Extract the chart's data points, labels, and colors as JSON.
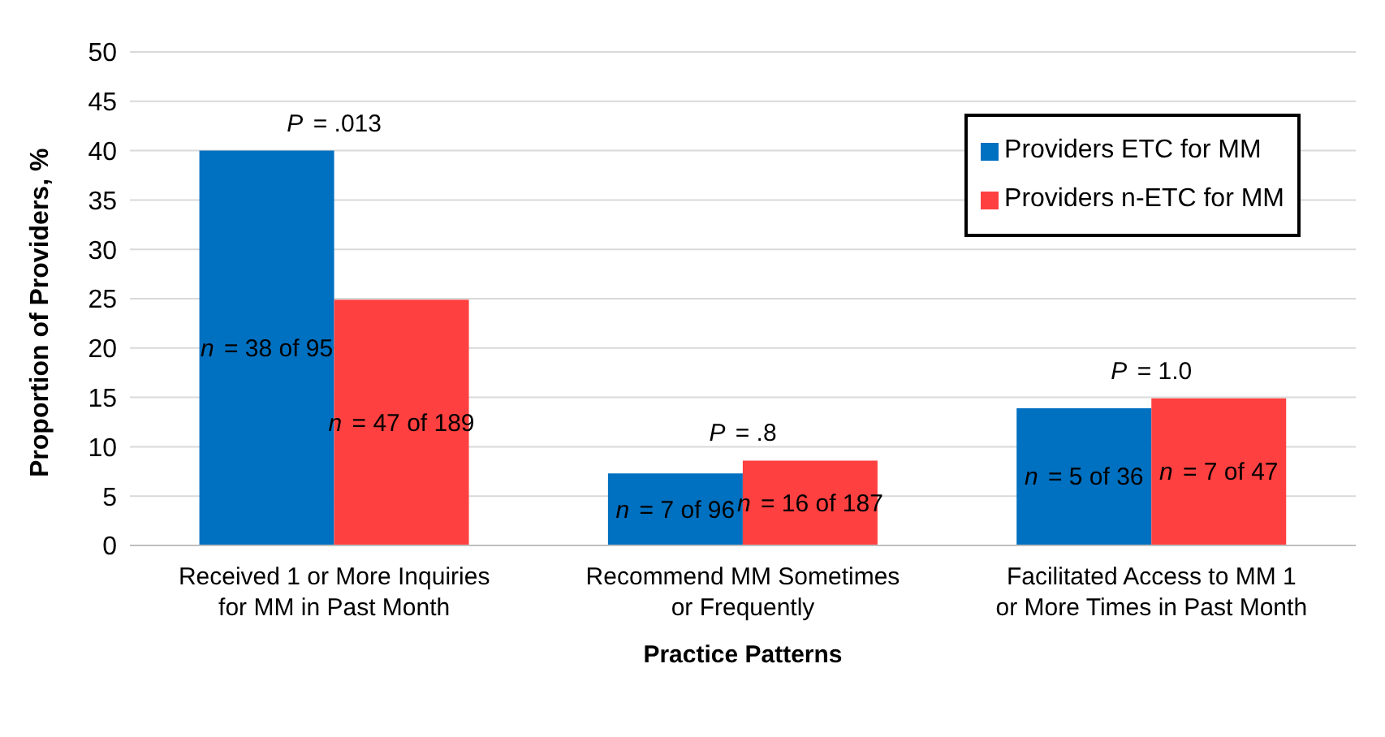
{
  "chart_data": {
    "type": "bar",
    "xlabel": "Practice Patterns",
    "ylabel": "Proportion of Providers, %",
    "categories": [
      "Received 1 or More Inquiries for MM in Past Month",
      "Recommend MM Sometimes or Frequently",
      "Facilitated Access to MM 1 or More Times in Past Month"
    ],
    "series": [
      {
        "name": "Providers ETC for MM",
        "color": "#0070c0",
        "values": [
          40.0,
          7.3,
          13.9
        ],
        "value_labels": [
          "n = 38 of 95",
          "n = 7 of 96",
          "n = 5 of 36"
        ]
      },
      {
        "name": "Providers n-ETC for MM",
        "color": "#ff4040",
        "values": [
          24.9,
          8.6,
          14.9
        ],
        "value_labels": [
          "n = 47 of 189",
          "n = 16 of 187",
          "n = 7 of 47"
        ]
      }
    ],
    "annotations": [
      {
        "text": "P = .013",
        "x": "Received 1 or More Inquiries for MM in Past Month",
        "y": 40.0
      },
      {
        "text": "P = .8",
        "x": "Recommend MM Sometimes or Frequently",
        "y": 8.6
      },
      {
        "text": "P = 1.0",
        "x": "Facilitated Access to MM 1 or More Times in Past Month",
        "y": 14.9
      }
    ],
    "ylim": [
      0,
      50
    ],
    "yticks": [
      0,
      5,
      10,
      15,
      20,
      25,
      30,
      35,
      40,
      45,
      50
    ],
    "grid": "y",
    "legend": "top right"
  }
}
